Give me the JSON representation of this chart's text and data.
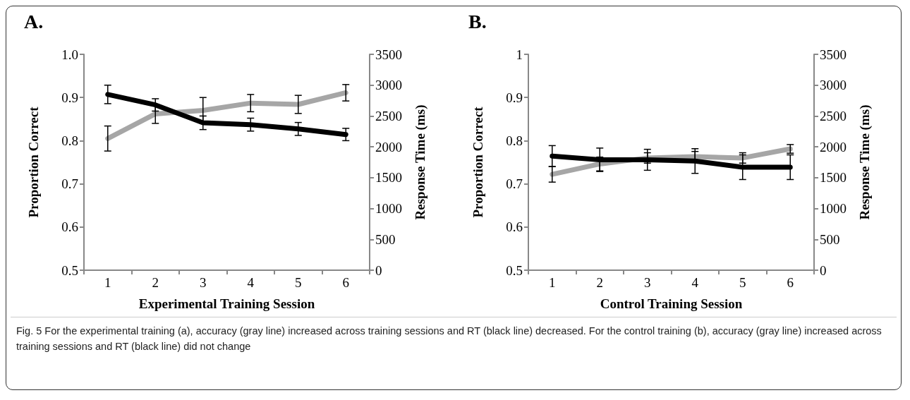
{
  "chart_data": [
    {
      "type": "line",
      "title": "A.",
      "xlabel": "Experimental Training Session",
      "ylabel": "Proportion Correct",
      "y2label": "Response Time (ms)",
      "categories": [
        "1",
        "2",
        "3",
        "4",
        "5",
        "6"
      ],
      "ylim": [
        0.5,
        1.0
      ],
      "yticks": [
        0.5,
        0.6,
        0.7,
        0.8,
        0.9,
        {
          "value": 1,
          "label": "1.0"
        }
      ],
      "y2lim": [
        0,
        3500
      ],
      "y2ticks": [
        0,
        500,
        1000,
        1500,
        2000,
        2500,
        3000,
        3500
      ],
      "series": [
        {
          "color": "#a6a6a6",
          "values": [
            0.805,
            0.862,
            0.87,
            0.887,
            0.884,
            0.911
          ],
          "errors": [
            0.029,
            0.022,
            0.03,
            0.02,
            0.021,
            0.019
          ]
        },
        {
          "color": "#000000",
          "axis": "y2",
          "values": [
            2850,
            2680,
            2390,
            2360,
            2290,
            2200
          ],
          "errors": [
            150,
            100,
            110,
            105,
            105,
            100
          ]
        }
      ],
      "annotations": [
        "Fig. 5 For the experimental training (a), accuracy (gray line) increased across training sessions and RT (black line) decreased. For the control training (b), accuracy (gray line) increased across training sessions and RT (black line) did not change"
      ]
    },
    {
      "type": "line",
      "title": "B.",
      "xlabel": "Control Training Session",
      "ylabel": "Proportion Correct",
      "y2label": "Response Time (ms)",
      "categories": [
        "1",
        "2",
        "3",
        "4",
        "5",
        "6"
      ],
      "ylim": [
        0.5,
        1
      ],
      "yticks": [
        0.5,
        0.6,
        0.7,
        0.8,
        0.9,
        1
      ],
      "y2lim": [
        0,
        3500
      ],
      "y2ticks": [
        0,
        500,
        1000,
        1500,
        2000,
        2500,
        3000,
        3500
      ],
      "series": [
        {
          "color": "#a6a6a6",
          "values": [
            0.722,
            0.746,
            0.76,
            0.763,
            0.76,
            0.781
          ],
          "errors": [
            0.018,
            0.016,
            0.012,
            0.012,
            0.012,
            0.01
          ]
        },
        {
          "color": "#000000",
          "axis": "y2",
          "values": [
            1850,
            1790,
            1790,
            1770,
            1670,
            1670
          ],
          "errors": [
            170,
            190,
            170,
            200,
            200,
            200
          ]
        }
      ]
    }
  ]
}
